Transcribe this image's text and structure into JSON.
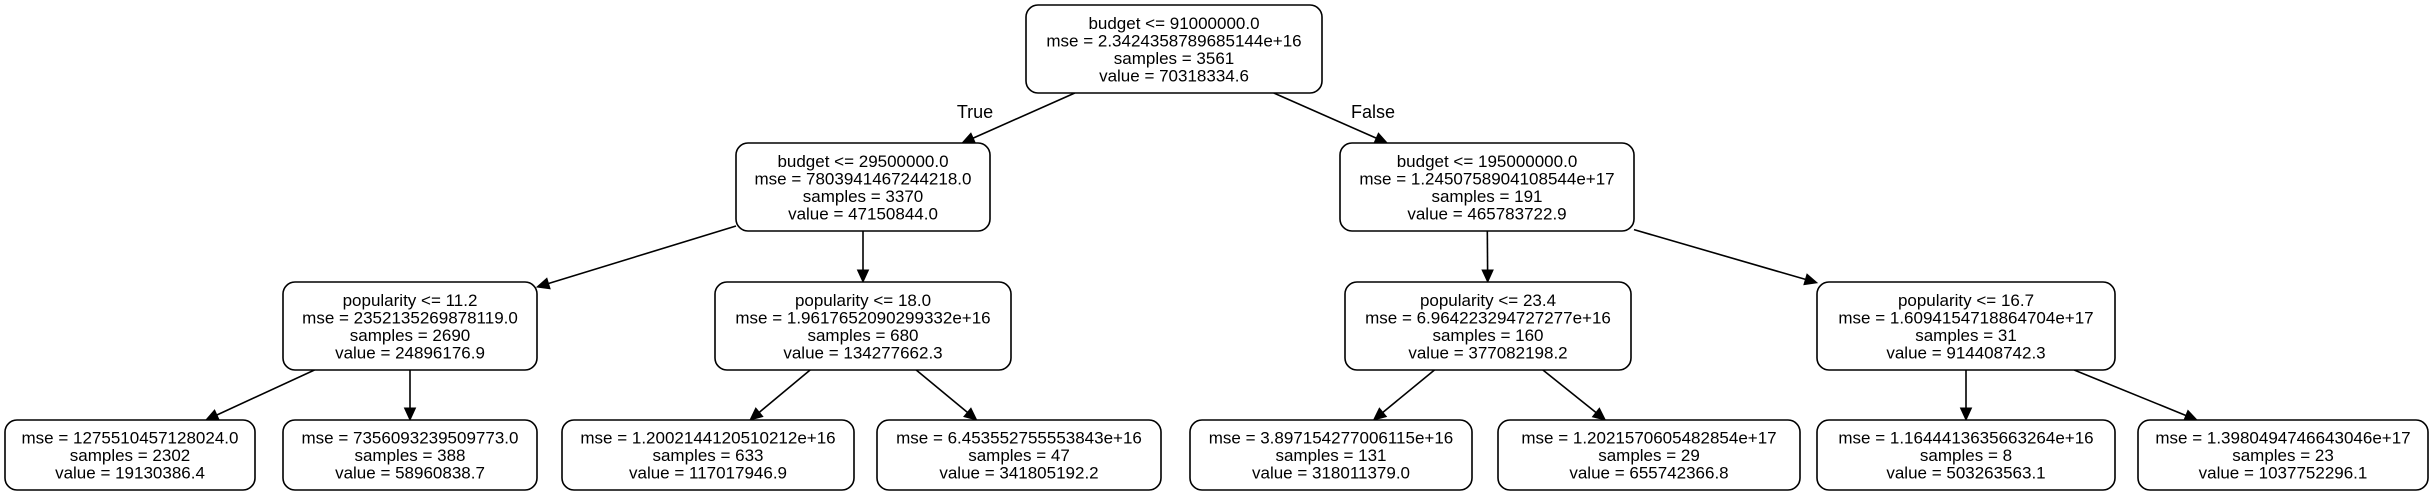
{
  "tree": {
    "nodes": [
      {
        "id": "n0",
        "lines": [
          "budget <= 91000000.0",
          "mse = 2.3424358789685144e+16",
          "samples = 3561",
          "value = 70318334.6"
        ]
      },
      {
        "id": "n1",
        "lines": [
          "budget <= 29500000.0",
          "mse = 7803941467244218.0",
          "samples = 3370",
          "value = 47150844.0"
        ]
      },
      {
        "id": "n2",
        "lines": [
          "budget <= 195000000.0",
          "mse = 1.2450758904108544e+17",
          "samples = 191",
          "value = 465783722.9"
        ]
      },
      {
        "id": "n3",
        "lines": [
          "popularity <= 11.2",
          "mse = 2352135269878119.0",
          "samples = 2690",
          "value = 24896176.9"
        ]
      },
      {
        "id": "n4",
        "lines": [
          "popularity <= 18.0",
          "mse = 1.9617652090299332e+16",
          "samples = 680",
          "value = 134277662.3"
        ]
      },
      {
        "id": "n5",
        "lines": [
          "popularity <= 23.4",
          "mse = 6.964223294727277e+16",
          "samples = 160",
          "value = 377082198.2"
        ]
      },
      {
        "id": "n6",
        "lines": [
          "popularity <= 16.7",
          "mse = 1.6094154718864704e+17",
          "samples = 31",
          "value = 914408742.3"
        ]
      },
      {
        "id": "n7",
        "lines": [
          "mse = 1275510457128024.0",
          "samples = 2302",
          "value = 19130386.4"
        ]
      },
      {
        "id": "n8",
        "lines": [
          "mse = 7356093239509773.0",
          "samples = 388",
          "value = 58960838.7"
        ]
      },
      {
        "id": "n9",
        "lines": [
          "mse = 1.2002144120510212e+16",
          "samples = 633",
          "value = 117017946.9"
        ]
      },
      {
        "id": "n10",
        "lines": [
          "mse = 6.453552755553843e+16",
          "samples = 47",
          "value = 341805192.2"
        ]
      },
      {
        "id": "n11",
        "lines": [
          "mse = 3.897154277006115e+16",
          "samples = 131",
          "value = 318011379.0"
        ]
      },
      {
        "id": "n12",
        "lines": [
          "mse = 1.2021570605482854e+17",
          "samples = 29",
          "value = 655742366.8"
        ]
      },
      {
        "id": "n13",
        "lines": [
          "mse = 1.1644413635663264e+16",
          "samples = 8",
          "value = 503263563.1"
        ]
      },
      {
        "id": "n14",
        "lines": [
          "mse = 1.3980494746643046e+17",
          "samples = 23",
          "value = 1037752296.1"
        ]
      }
    ],
    "edges": [
      {
        "from": "n0",
        "to": "n1",
        "label": "True"
      },
      {
        "from": "n0",
        "to": "n2",
        "label": "False"
      },
      {
        "from": "n1",
        "to": "n3",
        "label": ""
      },
      {
        "from": "n1",
        "to": "n4",
        "label": ""
      },
      {
        "from": "n2",
        "to": "n5",
        "label": ""
      },
      {
        "from": "n2",
        "to": "n6",
        "label": ""
      },
      {
        "from": "n3",
        "to": "n7",
        "label": ""
      },
      {
        "from": "n3",
        "to": "n8",
        "label": ""
      },
      {
        "from": "n4",
        "to": "n9",
        "label": ""
      },
      {
        "from": "n4",
        "to": "n10",
        "label": ""
      },
      {
        "from": "n5",
        "to": "n11",
        "label": ""
      },
      {
        "from": "n5",
        "to": "n12",
        "label": ""
      },
      {
        "from": "n6",
        "to": "n13",
        "label": ""
      },
      {
        "from": "n6",
        "to": "n14",
        "label": ""
      }
    ]
  }
}
